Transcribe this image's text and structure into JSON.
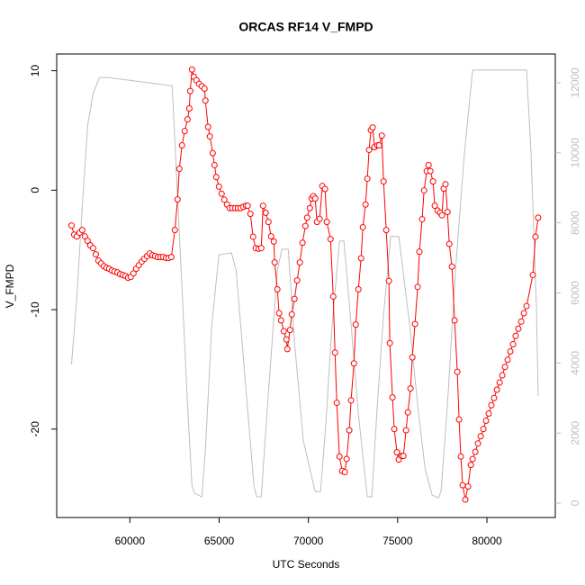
{
  "chart_data": {
    "type": "line",
    "title": "ORCAS RF14 V_FMPD",
    "x_label": "UTC Seconds",
    "y_label": "V_FMPD",
    "xlim": [
      55900,
      83830
    ],
    "ylim": [
      -27.4,
      11.4
    ],
    "y2lim": [
      -410,
      12820
    ],
    "xticks": [
      60000,
      65000,
      70000,
      75000,
      80000
    ],
    "yticks": [
      -20,
      -10,
      0,
      10
    ],
    "y2ticks": [
      0,
      2000,
      4000,
      6000,
      8000,
      10000,
      12000
    ],
    "series": [
      {
        "color": "#bebebe",
        "axis": "y2",
        "x": [
          56730,
          57030,
          57330,
          57630,
          57940,
          58290,
          58790,
          62220,
          62370,
          62820,
          63230,
          63480,
          63630,
          64030,
          64230,
          64590,
          64990,
          65690,
          65950,
          66450,
          66950,
          67100,
          67360,
          67710,
          68260,
          68520,
          68870,
          69220,
          69720,
          70380,
          70680,
          70980,
          71290,
          71740,
          71990,
          72390,
          72800,
          73300,
          73550,
          73860,
          74210,
          74610,
          75060,
          75670,
          76120,
          76530,
          76930,
          77280,
          77430,
          77790,
          78240,
          78740,
          79200,
          79450,
          82220,
          82470,
          82770,
          82870
        ],
        "values": [
          3960,
          5880,
          8450,
          10770,
          11690,
          12150,
          12150,
          11920,
          11920,
          7170,
          2800,
          490,
          280,
          180,
          1520,
          5110,
          7090,
          7140,
          6650,
          3570,
          490,
          180,
          180,
          2800,
          6650,
          7250,
          7250,
          4600,
          1770,
          330,
          330,
          2290,
          4860,
          7480,
          7480,
          5110,
          2540,
          180,
          180,
          2800,
          5370,
          7610,
          7610,
          5110,
          2800,
          1000,
          230,
          150,
          330,
          2800,
          6650,
          10000,
          12360,
          12360,
          12360,
          10000,
          5630,
          3060
        ]
      },
      {
        "name": "V_FMPD",
        "color": "#ff0000",
        "axis": "y",
        "x": [
          56730,
          56880,
          57030,
          57180,
          57330,
          57480,
          57630,
          57780,
          57940,
          58090,
          58240,
          58390,
          58540,
          58690,
          58840,
          58990,
          59140,
          59300,
          59450,
          59600,
          59750,
          59900,
          60050,
          60200,
          60350,
          60500,
          60660,
          60810,
          60960,
          61110,
          61260,
          61410,
          61560,
          61710,
          61860,
          62020,
          62170,
          62320,
          62520,
          62670,
          62770,
          62920,
          63070,
          63230,
          63330,
          63380,
          63480,
          63580,
          63730,
          63880,
          64030,
          64180,
          64230,
          64380,
          64480,
          64640,
          64740,
          64840,
          64990,
          65140,
          65290,
          65440,
          65590,
          65740,
          65900,
          66050,
          66200,
          66350,
          66500,
          66600,
          66750,
          66900,
          67050,
          67210,
          67360,
          67460,
          67610,
          67760,
          67910,
          68060,
          68110,
          68260,
          68360,
          68470,
          68620,
          68770,
          68820,
          68970,
          69070,
          69220,
          69370,
          69520,
          69670,
          69830,
          69930,
          70080,
          70180,
          70280,
          70380,
          70480,
          70630,
          70780,
          70930,
          71030,
          71240,
          71390,
          71490,
          71590,
          71740,
          71890,
          72040,
          72140,
          72290,
          72390,
          72550,
          72650,
          72800,
          72950,
          73050,
          73200,
          73300,
          73400,
          73500,
          73600,
          73700,
          73860,
          73960,
          74110,
          74210,
          74360,
          74510,
          74560,
          74710,
          74810,
          74960,
          75060,
          75220,
          75320,
          75470,
          75570,
          75720,
          75820,
          75970,
          76120,
          76220,
          76370,
          76480,
          76630,
          76730,
          76830,
          76980,
          77080,
          77230,
          77380,
          77480,
          77580,
          77680,
          77790,
          77890,
          78040,
          78190,
          78340,
          78440,
          78540,
          78640,
          78790,
          78940,
          79100,
          79200,
          79350,
          79500,
          79650,
          79800,
          79950,
          80100,
          80250,
          80400,
          80560,
          80710,
          80860,
          81010,
          81160,
          81310,
          81460,
          81610,
          81760,
          81920,
          82070,
          82220,
          82570,
          82720,
          82870
        ],
        "values": [
          -2.96,
          -3.72,
          -3.87,
          -3.56,
          -3.34,
          -3.87,
          -4.24,
          -4.62,
          -4.85,
          -5.37,
          -5.9,
          -6.13,
          -6.36,
          -6.5,
          -6.58,
          -6.73,
          -6.81,
          -6.88,
          -7.03,
          -7.1,
          -7.18,
          -7.33,
          -7.26,
          -6.96,
          -6.58,
          -6.28,
          -5.98,
          -5.75,
          -5.52,
          -5.3,
          -5.45,
          -5.52,
          -5.6,
          -5.6,
          -5.6,
          -5.67,
          -5.67,
          -5.6,
          -3.34,
          -0.78,
          1.79,
          3.75,
          4.95,
          5.93,
          6.84,
          8.3,
          10.1,
          9.5,
          9.2,
          8.9,
          8.7,
          8.5,
          7.5,
          5.3,
          4.5,
          3.1,
          2.1,
          1.1,
          0.3,
          -0.3,
          -0.8,
          -1.2,
          -1.5,
          -1.5,
          -1.5,
          -1.5,
          -1.5,
          -1.4,
          -1.3,
          -1.3,
          -1.98,
          -3.9,
          -4.85,
          -4.9,
          -4.85,
          -1.3,
          -1.9,
          -2.66,
          -3.87,
          -4.3,
          -6.05,
          -8.3,
          -10.3,
          -10.9,
          -11.8,
          -12.5,
          -13.3,
          -11.7,
          -10.4,
          -9.1,
          -7.56,
          -6.05,
          -4.4,
          -3.0,
          -2.3,
          -1.5,
          -0.7,
          -0.5,
          -0.7,
          -2.66,
          -2.4,
          0.35,
          0.1,
          -2.66,
          -4.1,
          -8.9,
          -13.6,
          -17.8,
          -22.3,
          -23.5,
          -23.6,
          -22.5,
          -20.1,
          -17.6,
          -14.5,
          -11.25,
          -8.3,
          -5.7,
          -3.1,
          -1.2,
          0.96,
          3.37,
          5.03,
          5.25,
          3.6,
          3.75,
          3.75,
          4.57,
          0.73,
          -3.34,
          -7.6,
          -12.8,
          -17.35,
          -20.0,
          -21.95,
          -22.55,
          -22.25,
          -22.25,
          -20.1,
          -18.6,
          -16.6,
          -14.0,
          -11.2,
          -8.1,
          -5.15,
          -2.43,
          -0.02,
          1.6,
          2.1,
          1.6,
          0.73,
          -1.3,
          -1.7,
          -1.9,
          -2.1,
          0.13,
          0.5,
          -1.83,
          -4.5,
          -6.4,
          -10.9,
          -15.2,
          -19.2,
          -22.3,
          -24.7,
          -25.9,
          -24.8,
          -23.0,
          -22.5,
          -21.9,
          -21.2,
          -20.6,
          -20.0,
          -19.3,
          -18.7,
          -18.0,
          -17.4,
          -16.7,
          -16.1,
          -15.5,
          -14.8,
          -14.2,
          -13.5,
          -12.9,
          -12.2,
          -11.6,
          -11.0,
          -10.3,
          -9.7,
          -7.1,
          -3.9,
          -2.3
        ]
      }
    ]
  }
}
